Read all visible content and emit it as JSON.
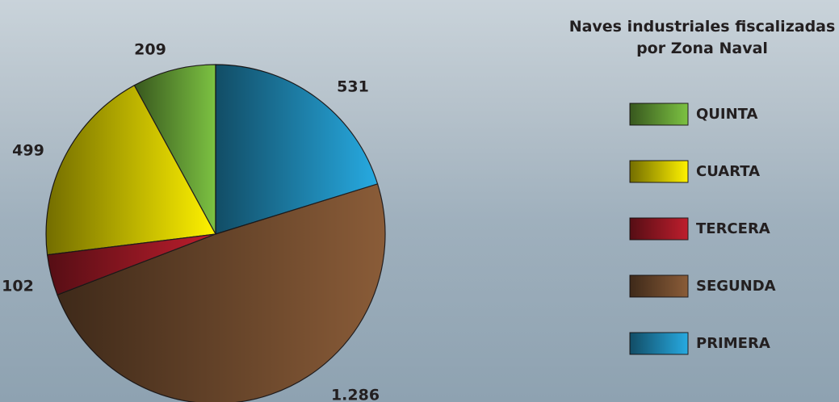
{
  "chart_data": {
    "type": "pie",
    "title": "Naves industriales fiscalizadas por Zona Naval",
    "categories": [
      "QUINTA",
      "CUARTA",
      "TERCERA",
      "SEGUNDA",
      "PRIMERA"
    ],
    "values": [
      209,
      499,
      102,
      1286,
      531
    ],
    "value_labels": [
      "209",
      "499",
      "102",
      "1.286",
      "531"
    ],
    "colors": [
      "#7cc242",
      "#fff200",
      "#be1e2d",
      "#8a5c38",
      "#27aae1"
    ]
  }
}
